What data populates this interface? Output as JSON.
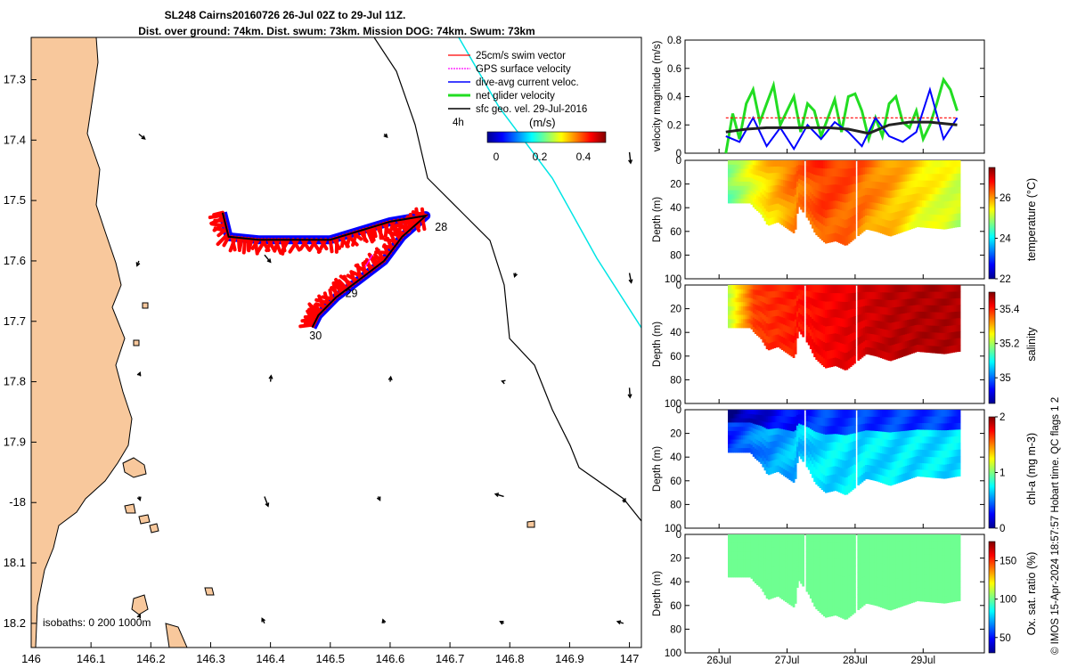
{
  "title": {
    "line1": "SL248 Cairns20160726 26-Jul 02Z to 29-Jul 11Z.",
    "line2": "Dist. over ground: 74km. Dist. swum: 73km. Mission DOG: 74km. Swum: 73km"
  },
  "colors": {
    "land": "#F8C89C",
    "swim": "#FF0000",
    "gps": "#FF00FF",
    "current": "#0000FF",
    "net": "#22DD22",
    "geo": "#000000",
    "track": "#00E5E5"
  },
  "map": {
    "xlim": [
      146.0,
      147.02
    ],
    "ylim": [
      -18.24,
      -17.23
    ],
    "xticks": [
      146,
      146.1,
      146.2,
      146.3,
      146.4,
      146.5,
      146.6,
      146.7,
      146.8,
      146.9,
      147
    ],
    "xtick_labels": [
      "146",
      "146.1",
      "146.2",
      "146.3",
      "146.4",
      "146.5",
      "146.6",
      "146.7",
      "146.8",
      "146.9",
      "147"
    ],
    "yticks": [
      -17.3,
      -17.4,
      -17.5,
      -17.6,
      -17.7,
      -17.8,
      -17.9,
      -18.0,
      -18.1,
      -18.2
    ],
    "ytick_labels": [
      "17.3",
      "17.4",
      "17.5",
      "17.6",
      "17.7",
      "17.8",
      "17.9",
      "-18",
      "18.1",
      "18.2"
    ],
    "isobath_label": "isobaths: 0   200  1000m",
    "day_labels": [
      {
        "text": "28",
        "lon": 146.675,
        "lat": -17.55
      },
      {
        "text": "29",
        "lon": 146.525,
        "lat": -17.66
      },
      {
        "text": "30",
        "lon": 146.465,
        "lat": -17.73
      }
    ],
    "legend": [
      {
        "key": "swim",
        "label": "25cm/s swim vector"
      },
      {
        "key": "gps",
        "label": "GPS surface velocity"
      },
      {
        "key": "current",
        "label": "dive-avg current veloc."
      },
      {
        "key": "net",
        "label": "net glider velocity"
      },
      {
        "key": "geo",
        "label": "sfc geo. vel. 29-Jul-2016"
      }
    ],
    "scale_label": "4h",
    "colorbar_unit": "(m/s)",
    "colorbar_ticks": [
      "0",
      "0.2",
      "0.4"
    ],
    "glider_track": [
      [
        146.32,
        -17.52
      ],
      [
        146.33,
        -17.56
      ],
      [
        146.38,
        -17.565
      ],
      [
        146.43,
        -17.565
      ],
      [
        146.5,
        -17.565
      ],
      [
        146.55,
        -17.55
      ],
      [
        146.6,
        -17.535
      ],
      [
        146.66,
        -17.525
      ],
      [
        146.62,
        -17.56
      ],
      [
        146.59,
        -17.6
      ],
      [
        146.55,
        -17.63
      ],
      [
        146.51,
        -17.66
      ],
      [
        146.48,
        -17.69
      ],
      [
        146.47,
        -17.71
      ]
    ],
    "geo_arrows": [
      [
        146.18,
        -17.39,
        0.01,
        -0.008
      ],
      [
        146.59,
        -17.39,
        0.005,
        -0.005
      ],
      [
        147.0,
        -17.42,
        0.002,
        -0.018
      ],
      [
        146.18,
        -17.6,
        -0.003,
        -0.008
      ],
      [
        146.39,
        -17.59,
        0.01,
        -0.012
      ],
      [
        146.81,
        -17.62,
        -0.002,
        -0.006
      ],
      [
        147.0,
        -17.62,
        0.003,
        -0.016
      ],
      [
        146.58,
        -17.58,
        -0.002,
        -0.004
      ],
      [
        146.18,
        -17.79,
        0.002,
        0.005
      ],
      [
        146.4,
        -17.8,
        0.001,
        0.01
      ],
      [
        146.6,
        -17.8,
        0.001,
        0.008
      ],
      [
        146.79,
        -17.8,
        -0.003,
        0.001
      ],
      [
        147.0,
        -17.81,
        0.001,
        -0.016
      ],
      [
        146.18,
        -17.99,
        0.002,
        -0.006
      ],
      [
        146.39,
        -17.99,
        0.006,
        -0.016
      ],
      [
        146.58,
        -17.99,
        0.003,
        -0.006
      ],
      [
        146.79,
        -17.99,
        -0.014,
        0.004
      ],
      [
        146.99,
        -18.0,
        0.003,
        0.006
      ],
      [
        146.18,
        -18.19,
        0.002,
        0.004
      ],
      [
        146.39,
        -18.2,
        -0.004,
        0.008
      ],
      [
        146.59,
        -18.2,
        -0.002,
        0.006
      ],
      [
        146.79,
        -18.2,
        -0.006,
        0.003
      ],
      [
        146.99,
        -18.2,
        -0.01,
        0.003
      ]
    ]
  },
  "chart_data": [
    {
      "type": "line",
      "title": "",
      "xlabel": "",
      "ylabel": "velocity magnitude (m/s)",
      "ylim": [
        0,
        0.8
      ],
      "yticks": [
        0,
        0.2,
        0.4,
        0.6,
        0.8
      ],
      "x_range_days": [
        25.5,
        29.9
      ],
      "series": [
        {
          "name": "net glider velocity",
          "x": [
            26.1,
            26.2,
            26.3,
            26.4,
            26.5,
            26.6,
            26.7,
            26.8,
            26.9,
            27.0,
            27.1,
            27.2,
            27.3,
            27.4,
            27.5,
            27.6,
            27.7,
            27.8,
            27.9,
            28.0,
            28.1,
            28.2,
            28.3,
            28.4,
            28.5,
            28.6,
            28.7,
            28.8,
            28.9,
            29.0,
            29.1,
            29.2,
            29.3,
            29.4,
            29.5
          ],
          "values": [
            0.0,
            0.28,
            0.1,
            0.35,
            0.45,
            0.22,
            0.35,
            0.48,
            0.2,
            0.3,
            0.4,
            0.15,
            0.35,
            0.3,
            0.12,
            0.25,
            0.38,
            0.15,
            0.4,
            0.42,
            0.3,
            0.1,
            0.25,
            0.12,
            0.35,
            0.4,
            0.22,
            0.18,
            0.3,
            0.1,
            0.2,
            0.35,
            0.52,
            0.45,
            0.3
          ]
        },
        {
          "name": "dive-avg current veloc.",
          "x": [
            26.1,
            26.3,
            26.5,
            26.7,
            26.9,
            27.1,
            27.3,
            27.5,
            27.7,
            27.9,
            28.1,
            28.3,
            28.5,
            28.7,
            28.9,
            29.1,
            29.3,
            29.5
          ],
          "values": [
            0.12,
            0.08,
            0.25,
            0.05,
            0.18,
            0.03,
            0.2,
            0.1,
            0.22,
            0.15,
            0.05,
            0.25,
            0.12,
            0.08,
            0.15,
            0.45,
            0.1,
            0.25
          ]
        },
        {
          "name": "sfc geo. vel.",
          "x": [
            26.1,
            26.4,
            26.7,
            27.0,
            27.3,
            27.6,
            27.9,
            28.2,
            28.5,
            28.8,
            29.1,
            29.5
          ],
          "values": [
            0.15,
            0.17,
            0.18,
            0.18,
            0.18,
            0.18,
            0.17,
            0.14,
            0.2,
            0.22,
            0.22,
            0.2
          ]
        },
        {
          "name": "25cm/s swim vector",
          "x": [
            26.1,
            29.5
          ],
          "values": [
            0.25,
            0.25
          ]
        }
      ]
    },
    {
      "type": "heatmap",
      "title": "",
      "ylabel": "Depth (m)",
      "colorbar_label": "temperature (°C)",
      "clim": [
        22,
        27.5
      ],
      "colorbar_ticks": [
        22,
        24,
        26
      ],
      "ylim": [
        100,
        0
      ],
      "x": [
        26.1,
        26.5,
        27.0,
        27.5,
        28.0,
        28.5,
        29.0,
        29.5
      ],
      "values_surface_to_bottom": [
        24.8,
        25.5,
        26.2,
        26.6,
        26.4,
        26.0,
        25.6,
        25.3
      ]
    },
    {
      "type": "heatmap",
      "title": "",
      "ylabel": "Depth (m)",
      "colorbar_label": "salinity",
      "clim": [
        34.85,
        35.5
      ],
      "colorbar_ticks": [
        35,
        35.2,
        35.4
      ],
      "ylim": [
        100,
        0
      ],
      "x": [
        26.1,
        26.5,
        27.0,
        27.5,
        28.0,
        28.5,
        29.0,
        29.5
      ],
      "values_surface_to_bottom": [
        35.2,
        35.38,
        35.4,
        35.42,
        35.44,
        35.46,
        35.47,
        35.47
      ]
    },
    {
      "type": "heatmap",
      "title": "",
      "ylabel": "Depth (m)",
      "colorbar_label": "chl-a (mg m-3)",
      "clim": [
        0,
        2
      ],
      "colorbar_ticks": [
        0,
        1,
        2
      ],
      "ylim": [
        100,
        0
      ],
      "x": [
        26.1,
        26.5,
        27.0,
        27.5,
        28.0,
        28.5,
        29.0,
        29.5
      ],
      "values_surface_to_bottom": [
        0.2,
        0.4,
        0.5,
        0.6,
        0.6,
        0.6,
        0.6,
        0.6
      ]
    },
    {
      "type": "heatmap",
      "title": "",
      "ylabel": "Depth (m)",
      "colorbar_label": "Ox. sat. ratio (%)",
      "clim": [
        30,
        175
      ],
      "colorbar_ticks": [
        50,
        100,
        150
      ],
      "ylim": [
        100,
        0
      ],
      "x": [
        26.1,
        26.5,
        27.0,
        27.5,
        28.0,
        28.5,
        29.0,
        29.5
      ],
      "values_surface_to_bottom": [
        100,
        100,
        100,
        100,
        100,
        100,
        100,
        100
      ]
    }
  ],
  "profiles": {
    "depth_ticks": [
      0,
      20,
      40,
      60,
      80,
      100
    ],
    "x_tick_days": [
      26,
      27,
      28,
      29
    ],
    "x_tick_labels": [
      "26Jul",
      "27Jul",
      "28Jul",
      "29Jul"
    ],
    "bottom_depth": [
      [
        26.1,
        36
      ],
      [
        26.45,
        36
      ],
      [
        26.5,
        40
      ],
      [
        26.6,
        45
      ],
      [
        26.7,
        55
      ],
      [
        26.85,
        52
      ],
      [
        27.0,
        58
      ],
      [
        27.1,
        62
      ],
      [
        27.15,
        38
      ],
      [
        27.3,
        50
      ],
      [
        27.4,
        62
      ],
      [
        27.55,
        70
      ],
      [
        27.7,
        68
      ],
      [
        27.85,
        72
      ],
      [
        28.0,
        65
      ],
      [
        28.15,
        58
      ],
      [
        28.3,
        60
      ],
      [
        28.5,
        64
      ],
      [
        28.7,
        60
      ],
      [
        28.9,
        56
      ],
      [
        29.1,
        57
      ],
      [
        29.3,
        58
      ],
      [
        29.5,
        56
      ]
    ],
    "gaps": [
      [
        26.0,
        26.12
      ],
      [
        27.22,
        27.26
      ],
      [
        27.98,
        28.01
      ]
    ]
  },
  "credit": "© IMOS 15-Apr-2024 18:57:57 Hobart time. QC flags 1  2"
}
